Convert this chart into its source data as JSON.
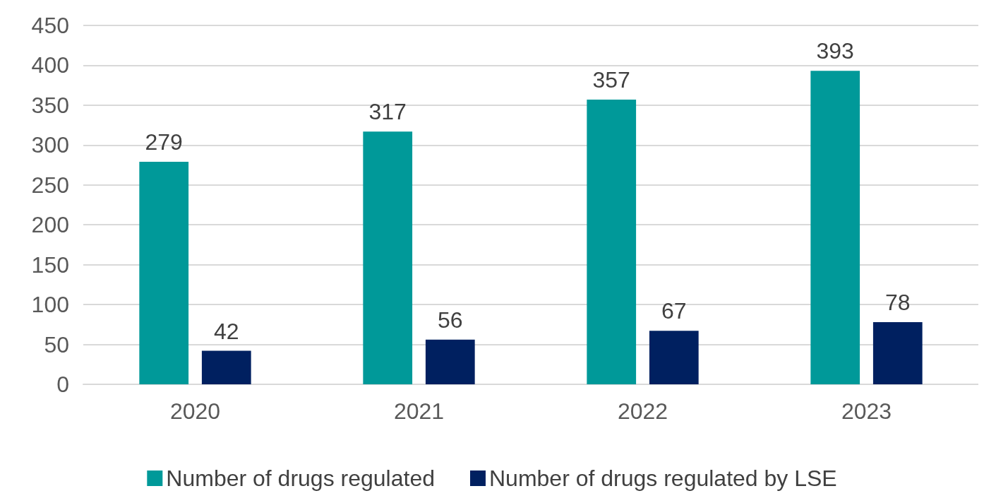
{
  "chart_data": {
    "type": "bar",
    "categories": [
      "2020",
      "2021",
      "2022",
      "2023"
    ],
    "series": [
      {
        "name": "Number of drugs regulated",
        "color": "#009999",
        "values": [
          279,
          317,
          357,
          393
        ]
      },
      {
        "name": "Number of drugs regulated by LSE",
        "color": "#002060",
        "values": [
          42,
          56,
          67,
          78
        ]
      }
    ],
    "ylim": [
      0,
      450
    ],
    "yticks": [
      0,
      50,
      100,
      150,
      200,
      250,
      300,
      350,
      400,
      450
    ],
    "grid": "y",
    "legend": "bottom",
    "data_labels": true
  }
}
